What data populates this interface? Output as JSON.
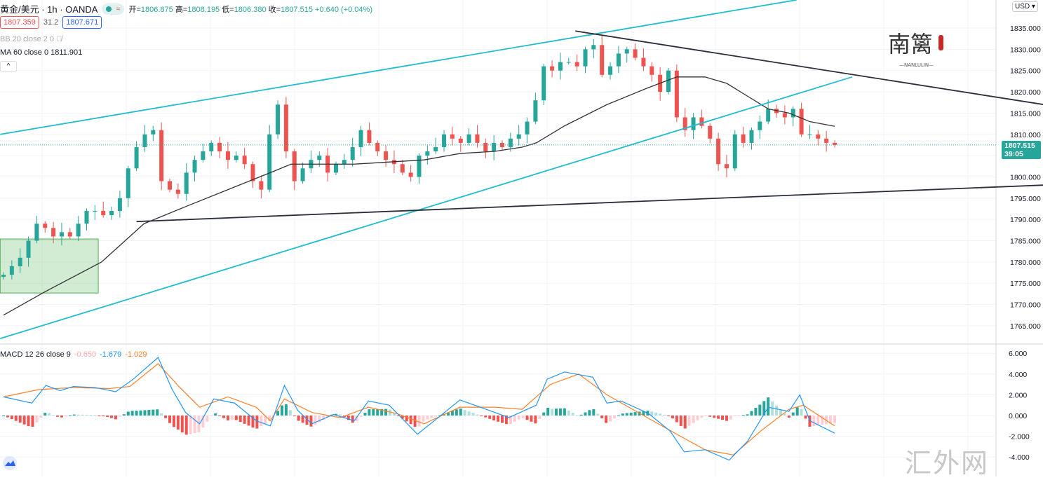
{
  "header": {
    "symbol": "黄金/美元 · 1h · OANDA",
    "approx_icon": "≈",
    "open_label": "开=",
    "open": "1806.875",
    "high_label": "高=",
    "high": "1808.195",
    "low_label": "低=",
    "low": "1806.380",
    "close_label": "收=",
    "close": "1807.515",
    "change": "+0.640 (+0.04%)"
  },
  "quote": {
    "bid": "1807.359",
    "spread": "31.2",
    "ask": "1807.671"
  },
  "indicators": {
    "bb": "BB 20 close 2 0",
    "ma": "MA 60 close 0  1811.901",
    "collapse": "^"
  },
  "macd": {
    "label": "MACD 12 26 close 9",
    "hist": "-0.650",
    "macd": "-1.679",
    "signal": "-1.029"
  },
  "axis": {
    "currency": "USD ▾",
    "price_tag": "1807.515",
    "countdown": "39:05"
  },
  "logo_text": "南篱 NANLULIN",
  "watermark": "汇外网",
  "colors": {
    "up": "#26a69a",
    "down": "#ef5350",
    "channel": "#22bcd0",
    "trend": "#2a2e39",
    "ma": "#333333",
    "macd": "#2196f3",
    "signal": "#ff7f24"
  },
  "chart_data": {
    "type": "candlestick",
    "title": "黄金/美元 · 1h · OANDA",
    "x_unit": "bar index",
    "xlim": [
      -0.4,
      119.4
    ],
    "price_ylim": [
      1761,
      1841
    ],
    "price_ticks": [
      1835,
      1830,
      1825,
      1820,
      1815,
      1810,
      1805,
      1800,
      1795,
      1790,
      1785,
      1780,
      1775,
      1770,
      1765
    ],
    "closes": [
      1777,
      1779,
      1781,
      1785,
      1789,
      1788,
      1786,
      1787,
      1786,
      1789,
      1792,
      1792,
      1791,
      1792,
      1795,
      1802,
      1807,
      1810,
      1811,
      1799,
      1797,
      1796,
      1801,
      1804,
      1806,
      1808,
      1806,
      1804,
      1805,
      1803,
      1799,
      1797,
      1810,
      1817,
      1806,
      1799,
      1802,
      1804,
      1805,
      1801,
      1803,
      1804,
      1807,
      1811,
      1808,
      1806,
      1804,
      1803,
      1801,
      1800,
      1805,
      1806,
      1807,
      1810,
      1809,
      1808,
      1810,
      1808,
      1806,
      1808,
      1807,
      1809,
      1810,
      1813,
      1818,
      1826,
      1825,
      1827,
      1827,
      1826,
      1830,
      1831,
      1824,
      1826,
      1829,
      1830,
      1828,
      1826,
      1824,
      1820,
      1825,
      1814,
      1811,
      1814,
      1812,
      1809,
      1803,
      1802,
      1810,
      1808,
      1811,
      1813,
      1816,
      1815,
      1814,
      1816,
      1810,
      1810,
      1809,
      1808,
      1807.515
    ],
    "ma60": [
      [
        0,
        1767.5
      ],
      [
        5,
        1773
      ],
      [
        11.8,
        1780
      ],
      [
        16.9,
        1789
      ],
      [
        21.9,
        1793
      ],
      [
        27,
        1797
      ],
      [
        32.1,
        1801
      ],
      [
        34.6,
        1803
      ],
      [
        42.2,
        1803
      ],
      [
        50.6,
        1804
      ],
      [
        54.9,
        1805.5
      ],
      [
        59.1,
        1806
      ],
      [
        62.4,
        1807
      ],
      [
        64.1,
        1808
      ],
      [
        67.5,
        1812
      ],
      [
        72.6,
        1817
      ],
      [
        77.6,
        1821
      ],
      [
        81,
        1823.5
      ],
      [
        84.4,
        1823.5
      ],
      [
        87,
        1822
      ],
      [
        89.5,
        1819
      ],
      [
        92,
        1816
      ],
      [
        94.5,
        1815
      ],
      [
        97,
        1813
      ],
      [
        100,
        1811.9
      ]
    ],
    "lines": [
      {
        "name": "channel-upper",
        "color": "channel",
        "from": [
          -0.4,
          1810
        ],
        "to": [
          95.4,
          1841.6
        ]
      },
      {
        "name": "channel-lower",
        "color": "channel",
        "from": [
          -0.4,
          1762
        ],
        "to": [
          102.1,
          1823.5
        ]
      },
      {
        "name": "trend-top",
        "color": "trend",
        "from": [
          68.8,
          1834.3
        ],
        "to": [
          125.5,
          1816.9
        ]
      },
      {
        "name": "trend-bottom",
        "color": "trend",
        "from": [
          16,
          1789.5
        ],
        "to": [
          125.5,
          1798.1
        ]
      }
    ],
    "zone": {
      "from": [
        -0.4,
        1785.4
      ],
      "to": [
        11.4,
        1772.7
      ]
    },
    "current_price": 1807.515,
    "macd_ylim": [
      -4.8,
      6.6
    ],
    "macd_ticks": [
      6,
      4,
      2,
      0,
      -2,
      -4
    ],
    "macd_line": [
      [
        0,
        1.8
      ],
      [
        3.4,
        1.2
      ],
      [
        5.1,
        2.9
      ],
      [
        6.8,
        2.4
      ],
      [
        8.4,
        2.8
      ],
      [
        11,
        2.7
      ],
      [
        13.5,
        2.3
      ],
      [
        15.6,
        3.5
      ],
      [
        18.6,
        5.6
      ],
      [
        20.3,
        2.5
      ],
      [
        21.9,
        0.3
      ],
      [
        23.6,
        -0.8
      ],
      [
        25.3,
        1.6
      ],
      [
        27.8,
        1.2
      ],
      [
        30.4,
        -0.5
      ],
      [
        32.1,
        -1.0
      ],
      [
        33.8,
        2.9
      ],
      [
        35.4,
        0.5
      ],
      [
        37.1,
        -0.8
      ],
      [
        39.7,
        0.1
      ],
      [
        42.2,
        -0.5
      ],
      [
        43.9,
        1.4
      ],
      [
        46.4,
        1.0
      ],
      [
        49.8,
        -1.8
      ],
      [
        52.3,
        -0.2
      ],
      [
        54.9,
        1.5
      ],
      [
        57.4,
        0.8
      ],
      [
        60.8,
        -0.2
      ],
      [
        64.1,
        1.0
      ],
      [
        65.4,
        3.5
      ],
      [
        67.5,
        4.2
      ],
      [
        70.9,
        3.7
      ],
      [
        72.6,
        1.2
      ],
      [
        74.3,
        1.4
      ],
      [
        77.6,
        0.2
      ],
      [
        80.2,
        -1.5
      ],
      [
        81.9,
        -3.5
      ],
      [
        84.4,
        -3.3
      ],
      [
        87.3,
        -4.3
      ],
      [
        89.5,
        -2.5
      ],
      [
        92,
        0.8
      ],
      [
        94.5,
        0.4
      ],
      [
        95.8,
        2.0
      ],
      [
        97,
        -0.5
      ],
      [
        100,
        -1.7
      ]
    ],
    "signal_line": [
      [
        0,
        1.8
      ],
      [
        4.2,
        2.5
      ],
      [
        8.4,
        2.7
      ],
      [
        12.7,
        2.6
      ],
      [
        15.2,
        2.8
      ],
      [
        18.6,
        5.0
      ],
      [
        21.1,
        2.8
      ],
      [
        23.6,
        0.8
      ],
      [
        27,
        1.8
      ],
      [
        30.4,
        0.8
      ],
      [
        32.1,
        -0.5
      ],
      [
        33.8,
        1.6
      ],
      [
        37.1,
        0.3
      ],
      [
        40.5,
        -0.2
      ],
      [
        43.9,
        0.8
      ],
      [
        47.3,
        0.2
      ],
      [
        50.6,
        -0.8
      ],
      [
        54.9,
        0.8
      ],
      [
        59.1,
        0.8
      ],
      [
        62.4,
        0.6
      ],
      [
        65.8,
        3.0
      ],
      [
        69.2,
        4.0
      ],
      [
        72.6,
        2.0
      ],
      [
        75.9,
        0.5
      ],
      [
        81,
        -1.8
      ],
      [
        84.4,
        -3.3
      ],
      [
        87.8,
        -3.8
      ],
      [
        91.1,
        -1.5
      ],
      [
        94.5,
        0.6
      ],
      [
        96.2,
        1.0
      ],
      [
        100,
        -1.0
      ]
    ]
  }
}
